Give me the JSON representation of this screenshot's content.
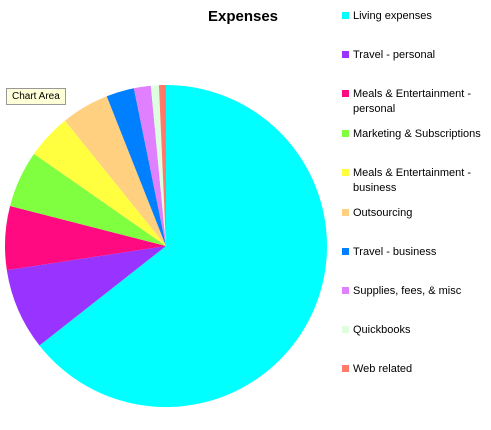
{
  "chart_data": {
    "type": "pie",
    "title": "Expenses",
    "categories": [
      "Living expenses",
      "Travel - personal",
      "Meals & Entertainment - personal",
      "Marketing & Subscriptions",
      "Meals & Entertainment - business",
      "Outsourcing",
      "Travel - business",
      "Supplies, fees, & misc",
      "Quickbooks",
      "Web related"
    ],
    "values": [
      64.4,
      8.2,
      6.4,
      5.7,
      4.5,
      4.8,
      2.8,
      1.7,
      0.8,
      0.7
    ],
    "colors": [
      "#00ffff",
      "#9933ff",
      "#ff0a80",
      "#80ff40",
      "#ffff40",
      "#ffd080",
      "#0080ff",
      "#e080ff",
      "#ddffe0",
      "#ff7a6a"
    ],
    "legend": "right"
  },
  "tooltip": "Chart Area"
}
